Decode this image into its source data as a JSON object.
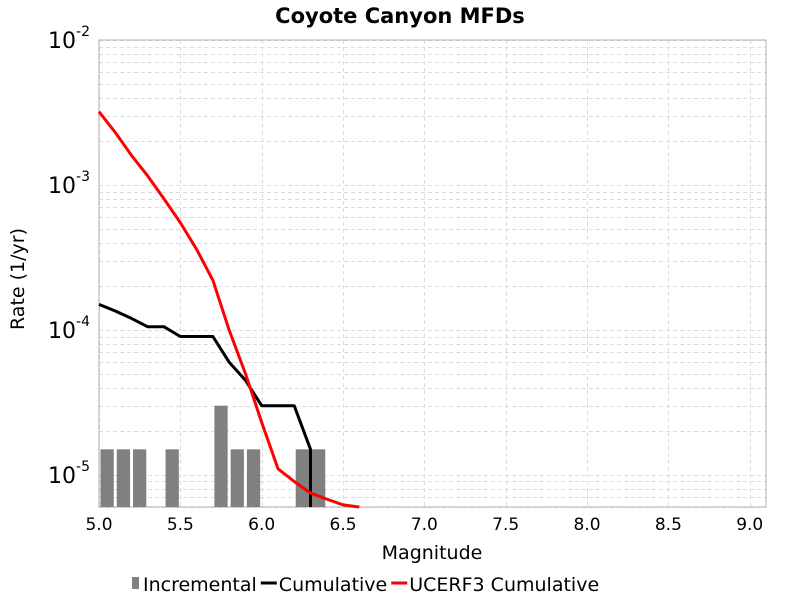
{
  "chart_data": {
    "type": "line",
    "title": "Coyote Canyon MFDs",
    "xlabel": "Magnitude",
    "ylabel": "Rate (1/yr)",
    "xlim": [
      5.0,
      9.1
    ],
    "ylim": [
      6e-06,
      0.01
    ],
    "yscale": "log",
    "grid": true,
    "legend_position": "bottom",
    "x_ticks": [
      "5.0",
      "5.5",
      "6.0",
      "6.5",
      "7.0",
      "7.5",
      "8.0",
      "8.5",
      "9.0"
    ],
    "y_ticks": [
      {
        "base": "10",
        "exp": "-2",
        "value": 0.01
      },
      {
        "base": "10",
        "exp": "-3",
        "value": 0.001
      },
      {
        "base": "10",
        "exp": "-4",
        "value": 0.0001
      },
      {
        "base": "10",
        "exp": "-5",
        "value": 1e-05
      }
    ],
    "series": [
      {
        "name": "Incremental",
        "kind": "bar",
        "color": "#808080",
        "bar_width": 0.1,
        "x": [
          5.05,
          5.15,
          5.25,
          5.45,
          5.75,
          5.85,
          5.95,
          6.25,
          6.35
        ],
        "y": [
          1.5e-05,
          1.5e-05,
          1.5e-05,
          1.5e-05,
          3e-05,
          1.5e-05,
          1.5e-05,
          1.5e-05,
          1.5e-05
        ]
      },
      {
        "name": "Cumulative",
        "kind": "line",
        "color": "#000000",
        "x": [
          5.0,
          5.1,
          5.2,
          5.3,
          5.4,
          5.5,
          5.6,
          5.7,
          5.8,
          5.9,
          6.0,
          6.1,
          6.2,
          6.3,
          6.3
        ],
        "y": [
          0.00015,
          0.000135,
          0.00012,
          0.000105,
          0.000105,
          9e-05,
          9e-05,
          9e-05,
          6e-05,
          4.5e-05,
          3e-05,
          3e-05,
          3e-05,
          1.5e-05,
          6e-06
        ]
      },
      {
        "name": "UCERF3 Cumulative",
        "kind": "line",
        "color": "#ff0000",
        "x": [
          5.0,
          5.1,
          5.2,
          5.3,
          5.4,
          5.5,
          5.6,
          5.7,
          5.8,
          5.9,
          6.0,
          6.1,
          6.2,
          6.3,
          6.4,
          6.5,
          6.6
        ],
        "y": [
          0.0032,
          0.0023,
          0.0016,
          0.00115,
          0.0008,
          0.00055,
          0.00036,
          0.00022,
          0.0001,
          5e-05,
          2.3e-05,
          1.1e-05,
          9e-06,
          7.5e-06,
          6.8e-06,
          6.2e-06,
          6e-06
        ]
      }
    ]
  }
}
